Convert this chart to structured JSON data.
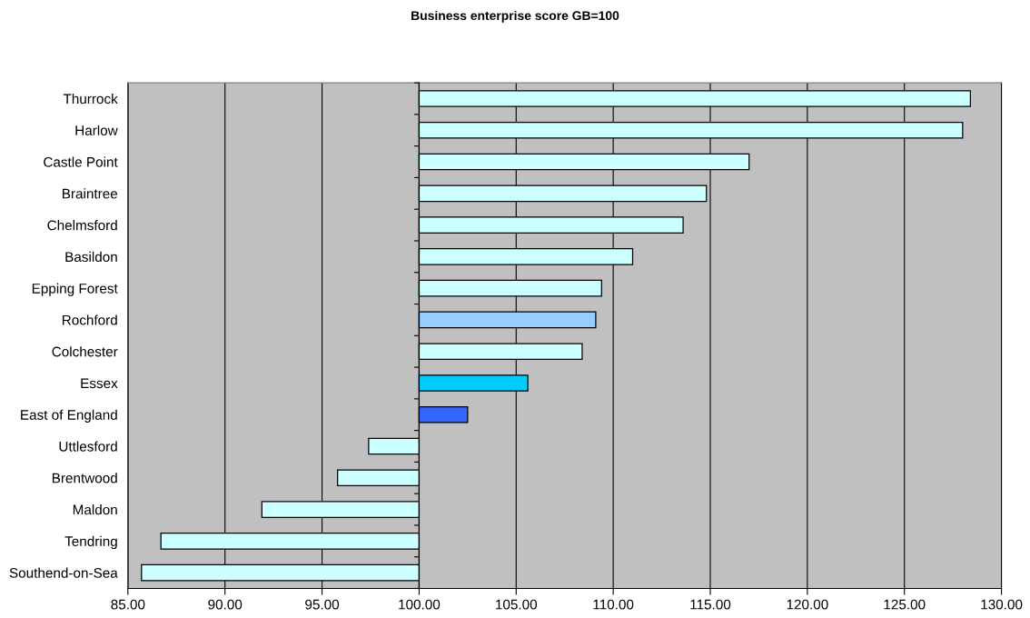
{
  "chart_data": {
    "type": "bar",
    "orientation": "horizontal",
    "title": "Business enterprise score GB=100",
    "categories": [
      "Thurrock",
      "Harlow",
      "Castle Point",
      "Braintree",
      "Chelmsford",
      "Basildon",
      "Epping Forest",
      "Rochford",
      "Colchester",
      "Essex",
      "East of England",
      "Uttlesford",
      "Brentwood",
      "Maldon",
      "Tendring",
      "Southend-on-Sea"
    ],
    "base": [
      100,
      100,
      100,
      100,
      100,
      100,
      100,
      100,
      100,
      100,
      100,
      100,
      100,
      100,
      100,
      100
    ],
    "values": [
      28.4,
      28.0,
      17.0,
      14.8,
      13.6,
      11.0,
      9.4,
      9.1,
      8.4,
      5.6,
      2.5,
      -2.6,
      -4.2,
      -8.1,
      -13.3,
      -14.3
    ],
    "colors": [
      "#ccffff",
      "#ccffff",
      "#ccffff",
      "#ccffff",
      "#ccffff",
      "#ccffff",
      "#ccffff",
      "#99ccff",
      "#ccffff",
      "#00ccff",
      "#3366ff",
      "#ccffff",
      "#ccffff",
      "#ccffff",
      "#ccffff",
      "#ccffff"
    ],
    "xlim": [
      85,
      130
    ],
    "xticks": [
      {
        "value": 85,
        "label": "85.00"
      },
      {
        "value": 90,
        "label": "90.00"
      },
      {
        "value": 95,
        "label": "95.00"
      },
      {
        "value": 100,
        "label": "100.00"
      },
      {
        "value": 105,
        "label": "105.00"
      },
      {
        "value": 110,
        "label": "110.00"
      },
      {
        "value": 115,
        "label": "115.00"
      },
      {
        "value": 120,
        "label": "120.00"
      },
      {
        "value": 125,
        "label": "125.00"
      },
      {
        "value": 130,
        "label": "130.00"
      }
    ],
    "grid": "x"
  }
}
